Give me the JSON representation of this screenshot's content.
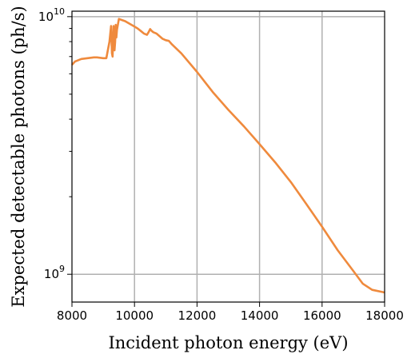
{
  "chart_data": {
    "type": "line",
    "title": "",
    "xlabel": "Incident photon energy (eV)",
    "ylabel": "Expected detectable photons (ph/s)",
    "xlim": [
      8000,
      18000
    ],
    "ylim": [
      780000000,
      10500000000
    ],
    "yscale": "log",
    "grid": true,
    "x_ticks": [
      8000,
      10000,
      12000,
      14000,
      16000,
      18000
    ],
    "x_tick_labels": [
      "8000",
      "10000",
      "12000",
      "14000",
      "16000",
      "18000"
    ],
    "y_major_ticks": [
      {
        "value": 1000000000,
        "base": "10",
        "exp": "9"
      },
      {
        "value": 10000000000,
        "base": "10",
        "exp": "10"
      }
    ],
    "y_minor_ticks": [
      2000000000,
      3000000000,
      4000000000,
      5000000000,
      6000000000,
      7000000000,
      8000000000,
      9000000000
    ],
    "series": [
      {
        "color": "#ef8a3d",
        "x": [
          8000,
          8100,
          8300,
          8500,
          8700,
          8800,
          9000,
          9100,
          9200,
          9250,
          9280,
          9300,
          9330,
          9360,
          9380,
          9400,
          9420,
          9440,
          9500,
          9600,
          9700,
          9800,
          9900,
          10000,
          10100,
          10200,
          10300,
          10400,
          10450,
          10500,
          10550,
          10600,
          10700,
          10800,
          10900,
          11000,
          11100,
          11200,
          11500,
          12000,
          12500,
          13000,
          13500,
          14000,
          14500,
          15000,
          15500,
          16000,
          16500,
          17000,
          17300,
          17600,
          18000
        ],
        "y": [
          6500000000,
          6700000000,
          6850000000,
          6900000000,
          6950000000,
          6950000000,
          6900000000,
          6900000000,
          8000000000,
          9200000000,
          7200000000,
          7000000000,
          9200000000,
          7400000000,
          8000000000,
          9300000000,
          8300000000,
          8900000000,
          9800000000,
          9700000000,
          9600000000,
          9450000000,
          9300000000,
          9150000000,
          9000000000,
          8800000000,
          8600000000,
          8500000000,
          8700000000,
          8950000000,
          8800000000,
          8700000000,
          8600000000,
          8400000000,
          8200000000,
          8100000000,
          8050000000,
          7800000000,
          7200000000,
          6100000000,
          5100000000,
          4350000000,
          3750000000,
          3200000000,
          2720000000,
          2280000000,
          1870000000,
          1530000000,
          1240000000,
          1030000000,
          920000000,
          870000000,
          850000000
        ]
      }
    ]
  }
}
